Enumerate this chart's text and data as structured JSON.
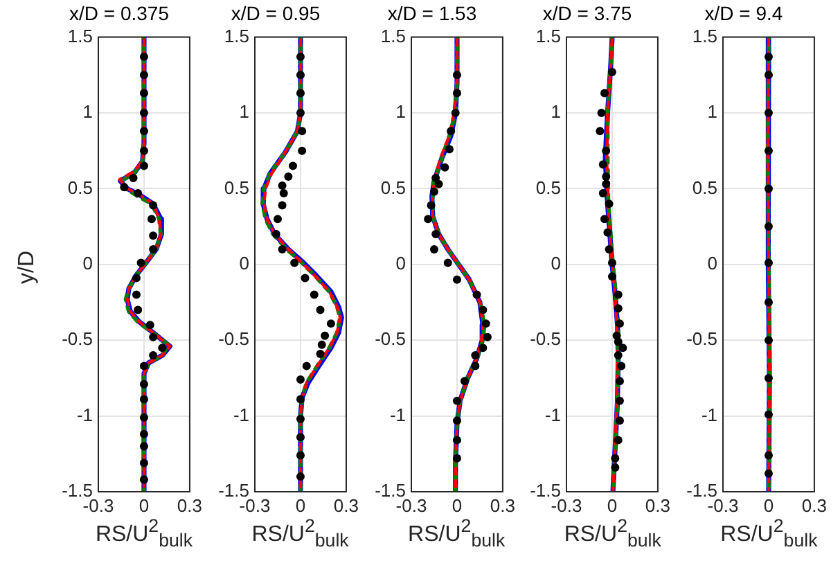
{
  "chart_data": [
    {
      "type": "line",
      "title": "x/D = 0.375",
      "xlabel": "RS/U$^{2}$$_{bulk}$",
      "ylabel": "y/D",
      "xlim": [
        -0.3,
        0.3
      ],
      "xticks": [
        -0.3,
        0,
        0.3
      ],
      "ylim": [
        -1.5,
        1.5
      ],
      "yticks": [
        -1.5,
        -1,
        -0.5,
        0,
        0.5,
        1,
        1.5
      ],
      "grid": true,
      "series": [
        {
          "type": "line",
          "color": "#0000ff",
          "line_style": "solid",
          "marker": "none",
          "x": [
            0,
            0,
            -0.01,
            -0.06,
            -0.155,
            -0.11,
            -0.03,
            0.06,
            0.11,
            0.115,
            0.08,
            0.02,
            -0.05,
            -0.1,
            -0.11,
            -0.09,
            -0.03,
            0.06,
            0.17,
            0.12,
            0.03,
            0,
            0
          ],
          "values": [
            1.5,
            0.8,
            0.68,
            0.61,
            0.55,
            0.5,
            0.46,
            0.4,
            0.3,
            0.2,
            0.1,
            0.02,
            -0.07,
            -0.16,
            -0.23,
            -0.31,
            -0.38,
            -0.45,
            -0.54,
            -0.6,
            -0.65,
            -0.72,
            -1.5
          ]
        },
        {
          "type": "line",
          "color": "#008000",
          "line_style": "dashed",
          "marker": "none",
          "x": [
            0,
            0,
            -0.01,
            -0.06,
            -0.15,
            -0.12,
            -0.04,
            0.05,
            0.1,
            0.11,
            0.08,
            0.02,
            -0.05,
            -0.1,
            -0.12,
            -0.1,
            -0.04,
            0.07,
            0.16,
            0.12,
            0.03,
            0,
            0
          ],
          "values": [
            1.5,
            0.8,
            0.68,
            0.61,
            0.55,
            0.5,
            0.45,
            0.4,
            0.3,
            0.2,
            0.1,
            0.02,
            -0.07,
            -0.16,
            -0.23,
            -0.31,
            -0.38,
            -0.46,
            -0.53,
            -0.6,
            -0.65,
            -0.72,
            -1.5
          ]
        },
        {
          "type": "line",
          "color": "#ff0000",
          "line_style": "dashed",
          "marker": "none",
          "x": [
            0,
            0,
            -0.01,
            -0.07,
            -0.16,
            -0.11,
            -0.03,
            0.06,
            0.1,
            0.11,
            0.08,
            0.02,
            -0.05,
            -0.1,
            -0.11,
            -0.09,
            -0.03,
            0.06,
            0.17,
            0.12,
            0.03,
            0,
            0
          ],
          "values": [
            1.5,
            0.8,
            0.68,
            0.61,
            0.56,
            0.5,
            0.46,
            0.4,
            0.3,
            0.2,
            0.1,
            0.02,
            -0.07,
            -0.16,
            -0.23,
            -0.31,
            -0.38,
            -0.45,
            -0.54,
            -0.6,
            -0.65,
            -0.72,
            -1.5
          ]
        },
        {
          "type": "scatter",
          "color": "#000000",
          "marker": "circle",
          "x": [
            0,
            0,
            0,
            0,
            0,
            0,
            0,
            -0.07,
            -0.13,
            -0.04,
            0.06,
            0.05,
            0.06,
            0.06,
            -0.02,
            -0.05,
            -0.05,
            -0.04,
            0.04,
            0.06,
            0.12,
            0.06,
            0,
            0,
            0,
            0,
            0,
            0,
            0,
            0
          ],
          "values": [
            1.37,
            1.25,
            1.13,
            1,
            0.88,
            0.75,
            0.65,
            0.57,
            0.51,
            0.47,
            0.39,
            0.3,
            0.19,
            0.1,
            0.01,
            -0.09,
            -0.2,
            -0.3,
            -0.4,
            -0.48,
            -0.55,
            -0.6,
            -0.67,
            -0.79,
            -0.89,
            -1.01,
            -1.12,
            -1.2,
            -1.31,
            -1.42
          ]
        }
      ]
    },
    {
      "type": "line",
      "title": "x/D = 0.95",
      "xlabel": "RS/U$^{2}$$_{bulk}$",
      "xlim": [
        -0.3,
        0.3
      ],
      "xticks": [
        -0.3,
        0,
        0.3
      ],
      "ylim": [
        -1.5,
        1.5
      ],
      "yticks": [
        -1.5,
        -1,
        -0.5,
        0,
        0.5,
        1,
        1.5
      ],
      "grid": true,
      "series": [
        {
          "type": "line",
          "color": "#0000ff",
          "line_style": "solid",
          "marker": "none",
          "x": [
            0,
            0,
            -0.02,
            -0.1,
            -0.2,
            -0.24,
            -0.245,
            -0.22,
            -0.17,
            -0.08,
            0.01,
            0.1,
            0.2,
            0.25,
            0.27,
            0.25,
            0.2,
            0.12,
            0.05,
            0.01,
            0,
            0
          ],
          "values": [
            1.5,
            1,
            0.88,
            0.74,
            0.6,
            0.5,
            0.4,
            0.3,
            0.2,
            0.1,
            0.02,
            -0.07,
            -0.18,
            -0.28,
            -0.35,
            -0.45,
            -0.55,
            -0.67,
            -0.78,
            -0.88,
            -1,
            -1.5
          ]
        },
        {
          "type": "line",
          "color": "#008000",
          "line_style": "dashed",
          "marker": "none",
          "x": [
            0,
            0,
            -0.02,
            -0.1,
            -0.2,
            -0.24,
            -0.25,
            -0.23,
            -0.18,
            -0.09,
            0,
            0.09,
            0.19,
            0.24,
            0.26,
            0.24,
            0.19,
            0.11,
            0.04,
            0.01,
            0,
            0
          ],
          "values": [
            1.5,
            1,
            0.88,
            0.74,
            0.6,
            0.5,
            0.4,
            0.3,
            0.2,
            0.1,
            0.02,
            -0.07,
            -0.18,
            -0.28,
            -0.35,
            -0.45,
            -0.55,
            -0.67,
            -0.78,
            -0.88,
            -1,
            -1.5
          ]
        },
        {
          "type": "line",
          "color": "#ff0000",
          "line_style": "dashed",
          "marker": "none",
          "x": [
            0,
            0,
            -0.02,
            -0.1,
            -0.19,
            -0.23,
            -0.24,
            -0.22,
            -0.17,
            -0.08,
            0,
            0.09,
            0.19,
            0.24,
            0.26,
            0.24,
            0.19,
            0.11,
            0.04,
            0.01,
            0,
            0
          ],
          "values": [
            1.5,
            1,
            0.88,
            0.74,
            0.6,
            0.5,
            0.4,
            0.3,
            0.2,
            0.1,
            0.02,
            -0.07,
            -0.18,
            -0.28,
            -0.35,
            -0.45,
            -0.55,
            -0.67,
            -0.78,
            -0.88,
            -1,
            -1.5
          ]
        },
        {
          "type": "scatter",
          "color": "#000000",
          "marker": "circle",
          "x": [
            0,
            0,
            0,
            0,
            0.01,
            0.01,
            -0.05,
            -0.08,
            -0.12,
            -0.11,
            -0.12,
            -0.15,
            -0.16,
            -0.12,
            -0.04,
            0.03,
            0.09,
            0.13,
            0.2,
            0.16,
            0.14,
            0.13,
            0.04,
            0,
            0,
            0,
            0,
            0,
            0
          ],
          "values": [
            1.37,
            1.25,
            1.13,
            1,
            0.88,
            0.75,
            0.65,
            0.58,
            0.52,
            0.47,
            0.39,
            0.3,
            0.2,
            0.1,
            0.01,
            -0.09,
            -0.2,
            -0.3,
            -0.39,
            -0.47,
            -0.53,
            -0.59,
            -0.67,
            -0.76,
            -0.89,
            -1.02,
            -1.14,
            -1.26,
            -1.4
          ]
        }
      ]
    },
    {
      "type": "line",
      "title": "x/D = 1.53",
      "xlabel": "RS/U$^{2}$$_{bulk}$",
      "xlim": [
        -0.3,
        0.3
      ],
      "xticks": [
        -0.3,
        0,
        0.3
      ],
      "ylim": [
        -1.5,
        1.5
      ],
      "yticks": [
        -1.5,
        -1,
        -0.5,
        0,
        0.5,
        1,
        1.5
      ],
      "grid": true,
      "series": [
        {
          "type": "line",
          "color": "#0000ff",
          "line_style": "solid",
          "marker": "none",
          "x": [
            0,
            0,
            -0.01,
            -0.04,
            -0.1,
            -0.15,
            -0.165,
            -0.16,
            -0.12,
            -0.06,
            0.01,
            0.08,
            0.15,
            0.17,
            0.165,
            0.13,
            0.07,
            0.02,
            0,
            -0.01,
            -0.01
          ],
          "values": [
            1.5,
            1.2,
            1,
            0.85,
            0.7,
            0.55,
            0.45,
            0.32,
            0.2,
            0.1,
            0,
            -0.1,
            -0.25,
            -0.4,
            -0.5,
            -0.62,
            -0.75,
            -0.9,
            -1.05,
            -1.3,
            -1.5
          ]
        },
        {
          "type": "line",
          "color": "#008000",
          "line_style": "dashed",
          "marker": "none",
          "x": [
            0,
            0,
            -0.01,
            -0.05,
            -0.1,
            -0.15,
            -0.16,
            -0.16,
            -0.12,
            -0.06,
            0.01,
            0.08,
            0.15,
            0.18,
            0.17,
            0.13,
            0.07,
            0.02,
            0,
            -0.01,
            -0.01
          ],
          "values": [
            1.5,
            1.2,
            1,
            0.85,
            0.7,
            0.55,
            0.45,
            0.32,
            0.2,
            0.1,
            0,
            -0.1,
            -0.25,
            -0.4,
            -0.5,
            -0.62,
            -0.75,
            -0.9,
            -1.05,
            -1.3,
            -1.5
          ]
        },
        {
          "type": "line",
          "color": "#ff0000",
          "line_style": "dashed",
          "marker": "none",
          "x": [
            0,
            0,
            -0.02,
            -0.05,
            -0.11,
            -0.15,
            -0.16,
            -0.16,
            -0.12,
            -0.06,
            0.01,
            0.08,
            0.15,
            0.17,
            0.16,
            0.13,
            0.07,
            0.02,
            0,
            -0.01,
            -0.01
          ],
          "values": [
            1.5,
            1.2,
            1,
            0.85,
            0.7,
            0.55,
            0.45,
            0.32,
            0.2,
            0.1,
            0,
            -0.1,
            -0.25,
            -0.4,
            -0.5,
            -0.62,
            -0.75,
            -0.9,
            -1.05,
            -1.3,
            -1.5
          ]
        },
        {
          "type": "scatter",
          "color": "#000000",
          "marker": "circle",
          "x": [
            0,
            0,
            -0.01,
            -0.04,
            -0.05,
            -0.08,
            -0.14,
            -0.12,
            -0.15,
            -0.17,
            -0.19,
            -0.14,
            -0.15,
            -0.06,
            0,
            0.13,
            0.17,
            0.19,
            0.2,
            0.17,
            0.12,
            0.12,
            0.05,
            0,
            0,
            0,
            0
          ],
          "values": [
            1.25,
            1.13,
            1,
            0.88,
            0.76,
            0.64,
            0.57,
            0.53,
            0.48,
            0.39,
            0.3,
            0.2,
            0.1,
            0.01,
            -0.1,
            -0.2,
            -0.3,
            -0.39,
            -0.48,
            -0.55,
            -0.6,
            -0.67,
            -0.77,
            -0.9,
            -1.03,
            -1.16,
            -1.28
          ]
        }
      ]
    },
    {
      "type": "line",
      "title": "x/D = 3.75",
      "xlabel": "RS/U$^{2}$$_{bulk}$",
      "xlim": [
        -0.3,
        0.3
      ],
      "xticks": [
        -0.3,
        0,
        0.3
      ],
      "ylim": [
        -1.5,
        1.5
      ],
      "yticks": [
        -1.5,
        -1,
        -0.5,
        0,
        0.5,
        1,
        1.5
      ],
      "grid": true,
      "series": [
        {
          "type": "line",
          "color": "#0000ff",
          "line_style": "solid",
          "marker": "none",
          "x": [
            0,
            -0.01,
            -0.03,
            -0.045,
            -0.03,
            -0.015,
            0,
            0.02,
            0.035,
            0.04,
            0.035,
            0.02,
            0.005
          ],
          "values": [
            1.5,
            1.3,
            1,
            0.7,
            0.4,
            0.2,
            0,
            -0.2,
            -0.4,
            -0.6,
            -0.9,
            -1.2,
            -1.5
          ]
        },
        {
          "type": "line",
          "color": "#008000",
          "line_style": "dashed",
          "marker": "none",
          "x": [
            0,
            -0.01,
            -0.03,
            -0.03,
            -0.025,
            -0.01,
            0.005,
            0.025,
            0.04,
            0.04,
            0.035,
            0.02,
            0.005
          ],
          "values": [
            1.5,
            1.3,
            1,
            0.7,
            0.4,
            0.2,
            0,
            -0.2,
            -0.4,
            -0.6,
            -0.9,
            -1.2,
            -1.5
          ]
        },
        {
          "type": "line",
          "color": "#ff0000",
          "line_style": "dashed",
          "marker": "none",
          "x": [
            0,
            -0.01,
            -0.03,
            -0.035,
            -0.03,
            -0.015,
            0,
            0.02,
            0.03,
            0.035,
            0.03,
            0.02,
            0.005
          ],
          "values": [
            1.5,
            1.3,
            1,
            0.7,
            0.4,
            0.2,
            0,
            -0.2,
            -0.4,
            -0.6,
            -0.9,
            -1.2,
            -1.5
          ]
        },
        {
          "type": "scatter",
          "color": "#000000",
          "marker": "circle",
          "x": [
            0,
            -0.05,
            -0.07,
            -0.08,
            -0.04,
            -0.06,
            -0.04,
            -0.04,
            -0.06,
            -0.02,
            -0.05,
            -0.03,
            -0.02,
            0,
            0,
            0.04,
            0.04,
            0.05,
            0.03,
            0.04,
            0.07,
            0.04,
            0.06,
            0.05,
            0.05,
            0.05,
            0.04,
            0.02,
            0.02
          ],
          "values": [
            1.27,
            1.13,
            1,
            0.88,
            0.75,
            0.66,
            0.58,
            0.53,
            0.47,
            0.4,
            0.3,
            0.21,
            0.1,
            0.01,
            -0.08,
            -0.2,
            -0.29,
            -0.39,
            -0.47,
            -0.51,
            -0.55,
            -0.6,
            -0.67,
            -0.77,
            -0.9,
            -1.03,
            -1.16,
            -1.28,
            -1.34
          ]
        }
      ]
    },
    {
      "type": "line",
      "title": "x/D = 9.4",
      "xlabel": "RS/U$^{2}$$_{bulk}$",
      "xlim": [
        -0.3,
        0.3
      ],
      "xticks": [
        -0.3,
        0,
        0.3
      ],
      "ylim": [
        -1.5,
        1.5
      ],
      "yticks": [
        -1.5,
        -1,
        -0.5,
        0,
        0.5,
        1,
        1.5
      ],
      "grid": true,
      "series": [
        {
          "type": "line",
          "color": "#0000ff",
          "line_style": "solid",
          "marker": "none",
          "x": [
            0,
            -0.005,
            0,
            0.005,
            0
          ],
          "values": [
            1.5,
            0.75,
            0,
            -0.75,
            -1.5
          ]
        },
        {
          "type": "line",
          "color": "#008000",
          "line_style": "dashed",
          "marker": "none",
          "x": [
            0,
            -0.005,
            0,
            0.005,
            0
          ],
          "values": [
            1.5,
            0.75,
            0,
            -0.75,
            -1.5
          ]
        },
        {
          "type": "line",
          "color": "#ff0000",
          "line_style": "dashed",
          "marker": "none",
          "x": [
            0,
            -0.005,
            0,
            0.005,
            0
          ],
          "values": [
            1.5,
            0.75,
            0,
            -0.75,
            -1.5
          ]
        },
        {
          "type": "scatter",
          "color": "#000000",
          "marker": "circle",
          "x": [
            0,
            0,
            0,
            0,
            0,
            0,
            0,
            0,
            0,
            0,
            0,
            0,
            0
          ],
          "values": [
            1.37,
            1.25,
            1,
            0.75,
            0.5,
            0.25,
            0.01,
            -0.25,
            -0.5,
            -0.75,
            -0.99,
            -1.26,
            -1.38
          ]
        }
      ]
    }
  ]
}
